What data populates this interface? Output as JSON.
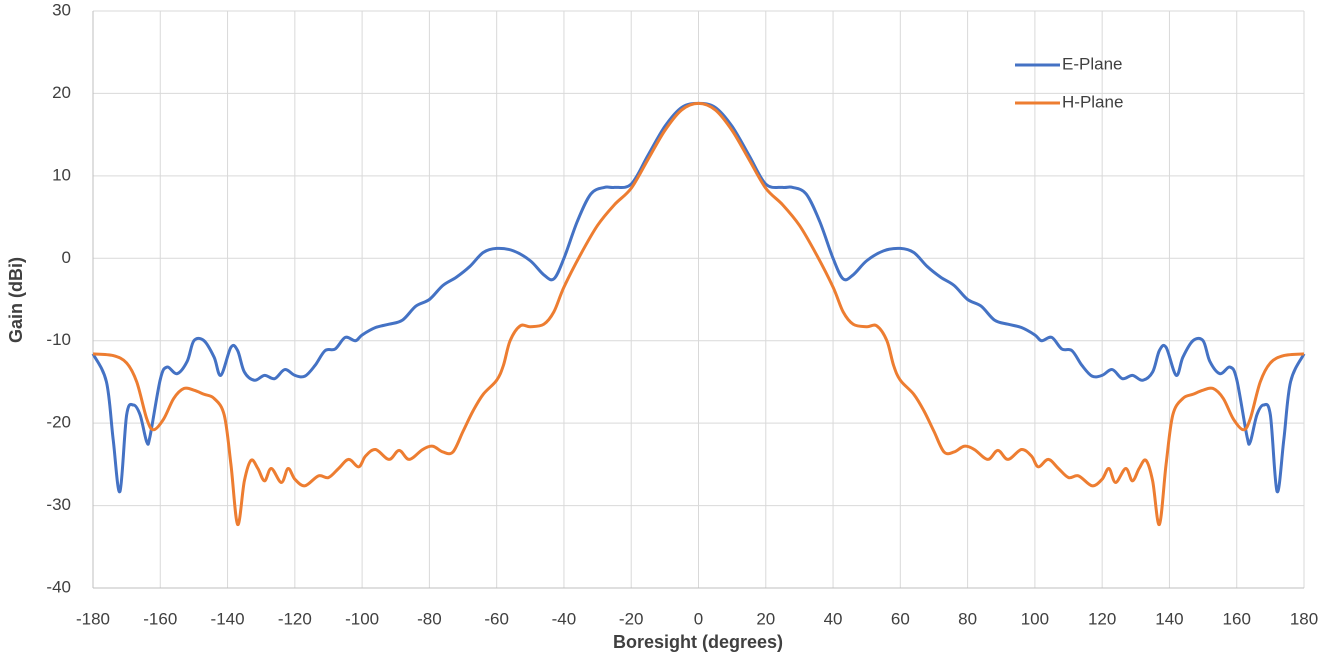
{
  "chart_data": {
    "type": "line",
    "x_label": "Boresight (degrees)",
    "y_label": "Gain (dBi)",
    "xlim": [
      -180,
      180
    ],
    "xticks": [
      -180,
      -160,
      -140,
      -120,
      -100,
      -80,
      -60,
      -40,
      -20,
      0,
      20,
      40,
      60,
      80,
      100,
      120,
      140,
      160,
      180
    ],
    "ylim": [
      -40,
      30
    ],
    "yticks": [
      -40,
      -30,
      -20,
      -10,
      0,
      10,
      20,
      30
    ],
    "grid": true,
    "legend": "top-right",
    "series": [
      {
        "name": "E-Plane",
        "color": "#4472c4",
        "x": [
          -180,
          -176,
          -174,
          -172,
          -170,
          -168,
          -166,
          -164,
          -163,
          -160,
          -158,
          -155,
          -152,
          -150,
          -147,
          -144,
          -142,
          -139,
          -137,
          -135,
          -132,
          -129,
          -126,
          -123,
          -120,
          -117,
          -114,
          -111,
          -108,
          -105,
          -102,
          -100,
          -96,
          -92,
          -88,
          -84,
          -80,
          -76,
          -72,
          -68,
          -64,
          -60,
          -55,
          -50,
          -46,
          -43,
          -40,
          -36,
          -32,
          -28,
          -25,
          -20,
          -15,
          -10,
          -5,
          0,
          5,
          10,
          15,
          20,
          25,
          28,
          32,
          36,
          40,
          43,
          46,
          50,
          55,
          60,
          64,
          68,
          72,
          76,
          80,
          84,
          88,
          92,
          96,
          100,
          102,
          105,
          108,
          111,
          114,
          117,
          120,
          123,
          126,
          129,
          132,
          135,
          137,
          139,
          142,
          144,
          147,
          150,
          152,
          155,
          158,
          160,
          163,
          164,
          166,
          168,
          170,
          172,
          174,
          176,
          180
        ],
        "values": [
          -11.6,
          -15,
          -22,
          -28.3,
          -19,
          -17.8,
          -19,
          -22.3,
          -21.5,
          -14.7,
          -13.2,
          -14,
          -12.5,
          -10,
          -10,
          -12,
          -14.2,
          -10.8,
          -11.2,
          -13.8,
          -14.8,
          -14.2,
          -14.6,
          -13.5,
          -14.2,
          -14.3,
          -13,
          -11.2,
          -11,
          -9.6,
          -10,
          -9.3,
          -8.4,
          -8,
          -7.5,
          -5.8,
          -5,
          -3.3,
          -2.3,
          -1,
          0.7,
          1.2,
          0.9,
          -0.3,
          -2,
          -2.5,
          0,
          4.5,
          7.8,
          8.6,
          8.6,
          9,
          12.5,
          16,
          18.3,
          18.8,
          18.3,
          16,
          12.5,
          9,
          8.6,
          8.6,
          7.8,
          4.5,
          0,
          -2.5,
          -2,
          -0.3,
          0.9,
          1.2,
          0.7,
          -1,
          -2.3,
          -3.3,
          -5,
          -5.8,
          -7.5,
          -8,
          -8.4,
          -9.3,
          -10,
          -9.6,
          -11,
          -11.2,
          -13,
          -14.3,
          -14.2,
          -13.5,
          -14.6,
          -14.2,
          -14.8,
          -13.8,
          -11.2,
          -10.8,
          -14.2,
          -12,
          -10,
          -10,
          -12.5,
          -14,
          -13.2,
          -14.7,
          -21.5,
          -22.3,
          -19,
          -17.8,
          -19,
          -28.3,
          -22,
          -15,
          -11.6
        ]
      },
      {
        "name": "H-Plane",
        "color": "#ed7d31",
        "x": [
          -180,
          -174,
          -170,
          -167,
          -164,
          -162,
          -159,
          -156,
          -153,
          -150,
          -147,
          -144,
          -141,
          -139,
          -137,
          -135,
          -133,
          -131,
          -129,
          -127,
          -124,
          -122,
          -120,
          -117,
          -113,
          -110,
          -107,
          -104,
          -101,
          -99,
          -96,
          -92,
          -89,
          -86,
          -82,
          -79,
          -76,
          -73,
          -70,
          -67,
          -64,
          -60,
          -58,
          -56,
          -53,
          -50,
          -46,
          -43,
          -40,
          -35,
          -30,
          -25,
          -20,
          -15,
          -10,
          -5,
          0,
          5,
          10,
          15,
          20,
          25,
          30,
          35,
          40,
          43,
          46,
          50,
          53,
          56,
          58,
          60,
          64,
          67,
          70,
          73,
          76,
          79,
          82,
          86,
          89,
          92,
          96,
          99,
          101,
          104,
          107,
          110,
          113,
          117,
          120,
          122,
          124,
          127,
          129,
          131,
          133,
          135,
          137,
          139,
          141,
          144,
          147,
          150,
          153,
          156,
          159,
          162,
          164,
          167,
          170,
          174,
          180
        ],
        "values": [
          -11.6,
          -11.8,
          -12.7,
          -15,
          -19.5,
          -20.8,
          -19.5,
          -17,
          -15.8,
          -16,
          -16.5,
          -17,
          -19,
          -25,
          -32.3,
          -27,
          -24.5,
          -25.5,
          -27,
          -25.5,
          -27.2,
          -25.5,
          -26.8,
          -27.6,
          -26.4,
          -26.6,
          -25.5,
          -24.4,
          -25.3,
          -24,
          -23.2,
          -24.4,
          -23.3,
          -24.4,
          -23.2,
          -22.8,
          -23.5,
          -23.5,
          -21,
          -18.5,
          -16.5,
          -14.8,
          -13,
          -10,
          -8.2,
          -8.3,
          -8,
          -6.5,
          -3.5,
          0.5,
          4,
          6.5,
          8.5,
          12,
          15.5,
          18,
          18.8,
          18,
          15.5,
          12,
          8.5,
          6.5,
          4,
          0.5,
          -3.5,
          -6.5,
          -8,
          -8.3,
          -8.2,
          -10,
          -13,
          -14.8,
          -16.5,
          -18.5,
          -21,
          -23.5,
          -23.5,
          -22.8,
          -23.2,
          -24.4,
          -23.3,
          -24.4,
          -23.2,
          -24,
          -25.3,
          -24.4,
          -25.5,
          -26.6,
          -26.4,
          -27.6,
          -26.8,
          -25.5,
          -27.2,
          -25.5,
          -27,
          -25.5,
          -24.5,
          -27,
          -32.3,
          -25,
          -19,
          -17,
          -16.5,
          -16,
          -15.8,
          -17,
          -19.5,
          -20.8,
          -19.5,
          -15,
          -12.7,
          -11.8,
          -11.6
        ]
      }
    ]
  }
}
